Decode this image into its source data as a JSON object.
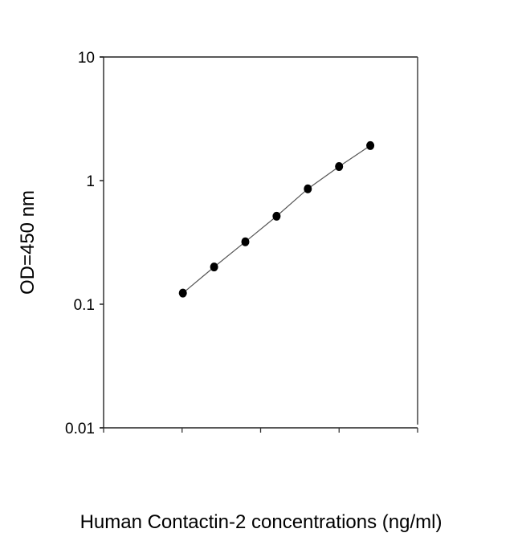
{
  "chart_data": {
    "type": "scatter",
    "title": "",
    "xlabel": "Human Contactin-2 concentrations (ng/ml)",
    "ylabel": "OD=450 nm",
    "y_scale": "log",
    "ylim": [
      0.01,
      10
    ],
    "y_ticks": [
      "10",
      "1",
      "0.1",
      "0.01"
    ],
    "x_scale": "log",
    "x_tick_labels_shown": false,
    "grid": false,
    "legend": "none",
    "fit_line": true,
    "marker_color": "#000000",
    "line_color": "#555555",
    "points": {
      "x_index": [
        1,
        2,
        3,
        4,
        5,
        6,
        7
      ],
      "y": [
        0.123,
        0.2,
        0.32,
        0.515,
        0.858,
        1.3,
        1.92
      ]
    }
  }
}
